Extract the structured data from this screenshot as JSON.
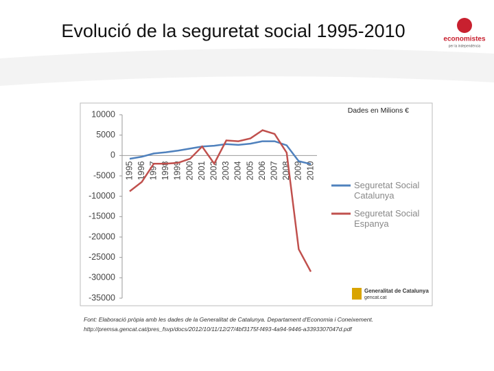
{
  "title": "Evolució de la seguretat social 1995-2010",
  "logos": {
    "top": [
      "economistes",
      "per la independència"
    ],
    "bottom": [
      "Generalitat de Catalunya",
      "gencat.cat"
    ]
  },
  "source": [
    "Font: Elaboració pròpia amb les dades de la Generalitat de Catalunya. Departament d'Economia i Coneixement.",
    "http://premsa.gencat.cat/pres_fsvp/docs/2012/10/11/12/27/4bf3175f-f493-4a94-9446-a3393307047d.pdf"
  ],
  "chart_data": {
    "type": "line",
    "annotation": "Dades en Milions €",
    "categories": [
      "1995",
      "1996",
      "1997",
      "1998",
      "1999",
      "2000",
      "2001",
      "2002",
      "2003",
      "2004",
      "2005",
      "2006",
      "2007",
      "2008",
      "2009",
      "2010"
    ],
    "series": [
      {
        "name": "Seguretat Social Catalunya",
        "color": "#4f81bd",
        "values": [
          -800,
          -300,
          500,
          800,
          1200,
          1700,
          2200,
          2400,
          2800,
          2600,
          2900,
          3500,
          3500,
          2500,
          -1400,
          -2100
        ]
      },
      {
        "name": "Seguretat Social Espanya",
        "color": "#c0504d",
        "values": [
          -8800,
          -6500,
          -2000,
          -2000,
          -1800,
          -800,
          2200,
          -2000,
          3700,
          3500,
          4200,
          6200,
          5300,
          700,
          -23000,
          -28500
        ]
      }
    ],
    "ylim": [
      -35000,
      10000
    ],
    "yticks": [
      10000,
      5000,
      0,
      -5000,
      -10000,
      -15000,
      -20000,
      -25000,
      -30000,
      -35000
    ],
    "legend": "right"
  }
}
